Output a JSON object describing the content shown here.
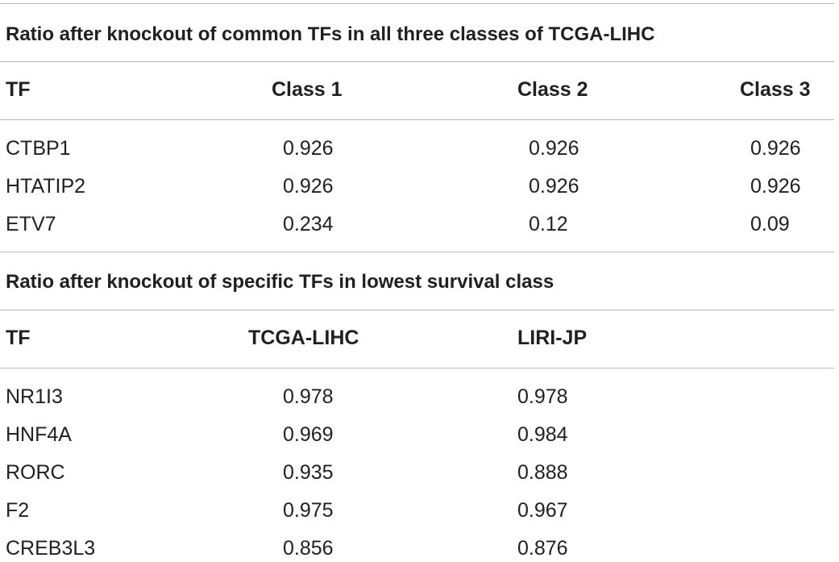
{
  "section1": {
    "caption": "Ratio after knockout of common TFs in all three classes of TCGA-LIHC",
    "headers": [
      "TF",
      "Class 1",
      "Class 2",
      "Class 3"
    ],
    "rows": [
      [
        "CTBP1",
        "0.926",
        "0.926",
        "0.926"
      ],
      [
        "HTATIP2",
        "0.926",
        "0.926",
        "0.926"
      ],
      [
        "ETV7",
        "0.234",
        "0.12",
        "0.09"
      ]
    ]
  },
  "section2": {
    "caption": "Ratio after knockout of specific TFs in lowest survival class",
    "headers": [
      "TF",
      "TCGA-LIHC",
      "LIRI-JP"
    ],
    "rows": [
      [
        "NR1I3",
        "0.978",
        "0.978"
      ],
      [
        "HNF4A",
        "0.969",
        "0.984"
      ],
      [
        "RORC",
        "0.935",
        "0.888"
      ],
      [
        "F2",
        "0.975",
        "0.967"
      ],
      [
        "CREB3L3",
        "0.856",
        "0.876"
      ]
    ]
  }
}
